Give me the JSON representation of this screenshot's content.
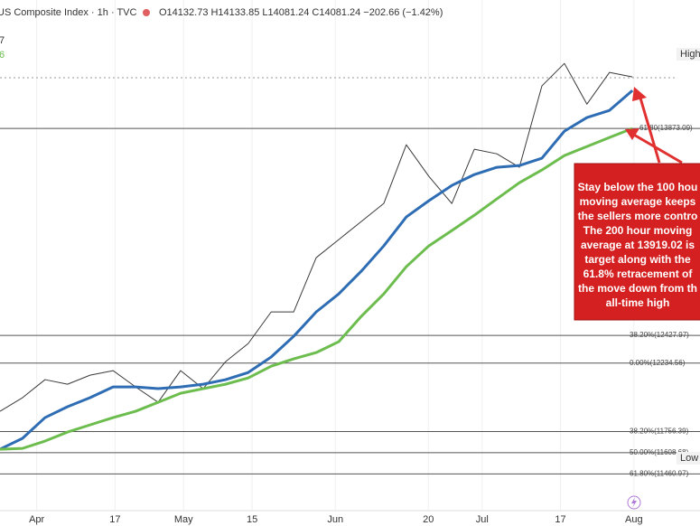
{
  "chart_data": {
    "type": "line",
    "header": {
      "title": "US Composite Index · 1h · TVC",
      "ohlc": "O14132.73 H14133.85 L14081.24 C14081.24 −202.66 (−1.42%)",
      "legend_fragments": [
        "7",
        "6"
      ]
    },
    "x": [
      83.5,
      88.1,
      92.7,
      97.3,
      101.9,
      106.6,
      111.2,
      115.8,
      120.4,
      125.0,
      129.6,
      134.2,
      138.9,
      143.5,
      148.1,
      152.7,
      157.3,
      161.9,
      166.5,
      171.1,
      175.8,
      180.4,
      185.0,
      189.6,
      194.2,
      198.8,
      203.4,
      208.0,
      212.7
    ],
    "series": [
      {
        "color": "#3a3a3a",
        "values": [
          11898,
          11993,
          12119,
          12087,
          12150,
          12182,
          12068,
          11961,
          12182,
          12056,
          12245,
          12371,
          12592,
          12592,
          12971,
          13097,
          13223,
          13349,
          13759,
          13539,
          13349,
          13728,
          13696,
          13602,
          14170,
          14327,
          14043,
          14264,
          14233
        ]
      },
      {
        "color": "#2e6db4",
        "values": [
          11633,
          11709,
          11854,
          11930,
          11993,
          12068,
          12068,
          12056,
          12068,
          12087,
          12119,
          12169,
          12277,
          12422,
          12592,
          12718,
          12876,
          13053,
          13255,
          13368,
          13475,
          13551,
          13602,
          13614,
          13665,
          13854,
          13949,
          13999,
          14138
        ]
      },
      {
        "color": "#6cbd4e",
        "values": [
          11633,
          11639,
          11690,
          11753,
          11803,
          11854,
          11898,
          11961,
          12024,
          12056,
          12087,
          12131,
          12213,
          12264,
          12308,
          12384,
          12561,
          12718,
          12908,
          13053,
          13160,
          13267,
          13381,
          13494,
          13583,
          13684,
          13747,
          13810,
          13873
        ]
      }
    ],
    "xlim": [
      83.5,
      226.5
    ],
    "ylim": [
      11097,
      14770
    ],
    "xticks": [
      {
        "value": 91,
        "label": "Apr"
      },
      {
        "value": 107,
        "label": "17"
      },
      {
        "value": 121,
        "label": "May"
      },
      {
        "value": 135,
        "label": "15"
      },
      {
        "value": 152,
        "label": "Jun"
      },
      {
        "value": 171,
        "label": "20"
      },
      {
        "value": 182,
        "label": "Jul"
      },
      {
        "value": 198,
        "label": "17"
      },
      {
        "value": 213,
        "label": "Aug"
      }
    ],
    "levels": [
      {
        "value": 13873.09,
        "label": "61.80(13873.09)"
      },
      {
        "value": 12427.97,
        "label": "38.20%(12427.97)"
      },
      {
        "value": 12234.56,
        "label": "0.00%(12234.56)"
      },
      {
        "value": 11756.39,
        "label": "38.20%(11756.39)"
      },
      {
        "value": 11608.68,
        "label": "50.00%(11608.68)"
      },
      {
        "value": 11460.97,
        "label": "61.80%(11460.97)"
      }
    ],
    "high_label": "High",
    "low_label": "Low",
    "annotation": [
      "Stay below the 100 hou",
      "moving average keeps",
      "the sellers more contro",
      "The 200 hour moving",
      "average at 13919.02 is",
      "target along with the",
      "61.8% retracement of",
      "the move down from th",
      "all-time high"
    ],
    "grid": true
  }
}
